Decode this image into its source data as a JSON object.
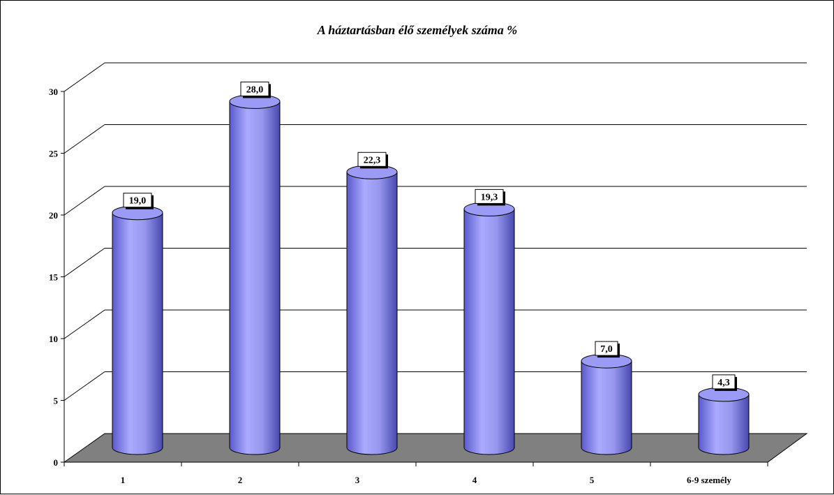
{
  "chart_data": {
    "type": "bar",
    "style": "3d-cylinder",
    "title": "A háztartásban élő személyek száma %",
    "categories": [
      "1",
      "2",
      "3",
      "4",
      "5",
      "6-9 személy"
    ],
    "values": [
      19.0,
      28.0,
      22.3,
      19.3,
      7.0,
      4.3
    ],
    "value_labels": [
      "19,0",
      "28,0",
      "22,3",
      "19,3",
      "7,0",
      "4,3"
    ],
    "yticks": [
      0,
      5,
      10,
      15,
      20,
      25,
      30
    ],
    "ylim": [
      0,
      30
    ],
    "xlabel": "",
    "ylabel": "",
    "grid": true,
    "legend": "none",
    "colors": {
      "bar": "#9b9bf5",
      "bar_dark": "#5a5acc",
      "floor": "#808080",
      "grid": "#000000"
    }
  }
}
